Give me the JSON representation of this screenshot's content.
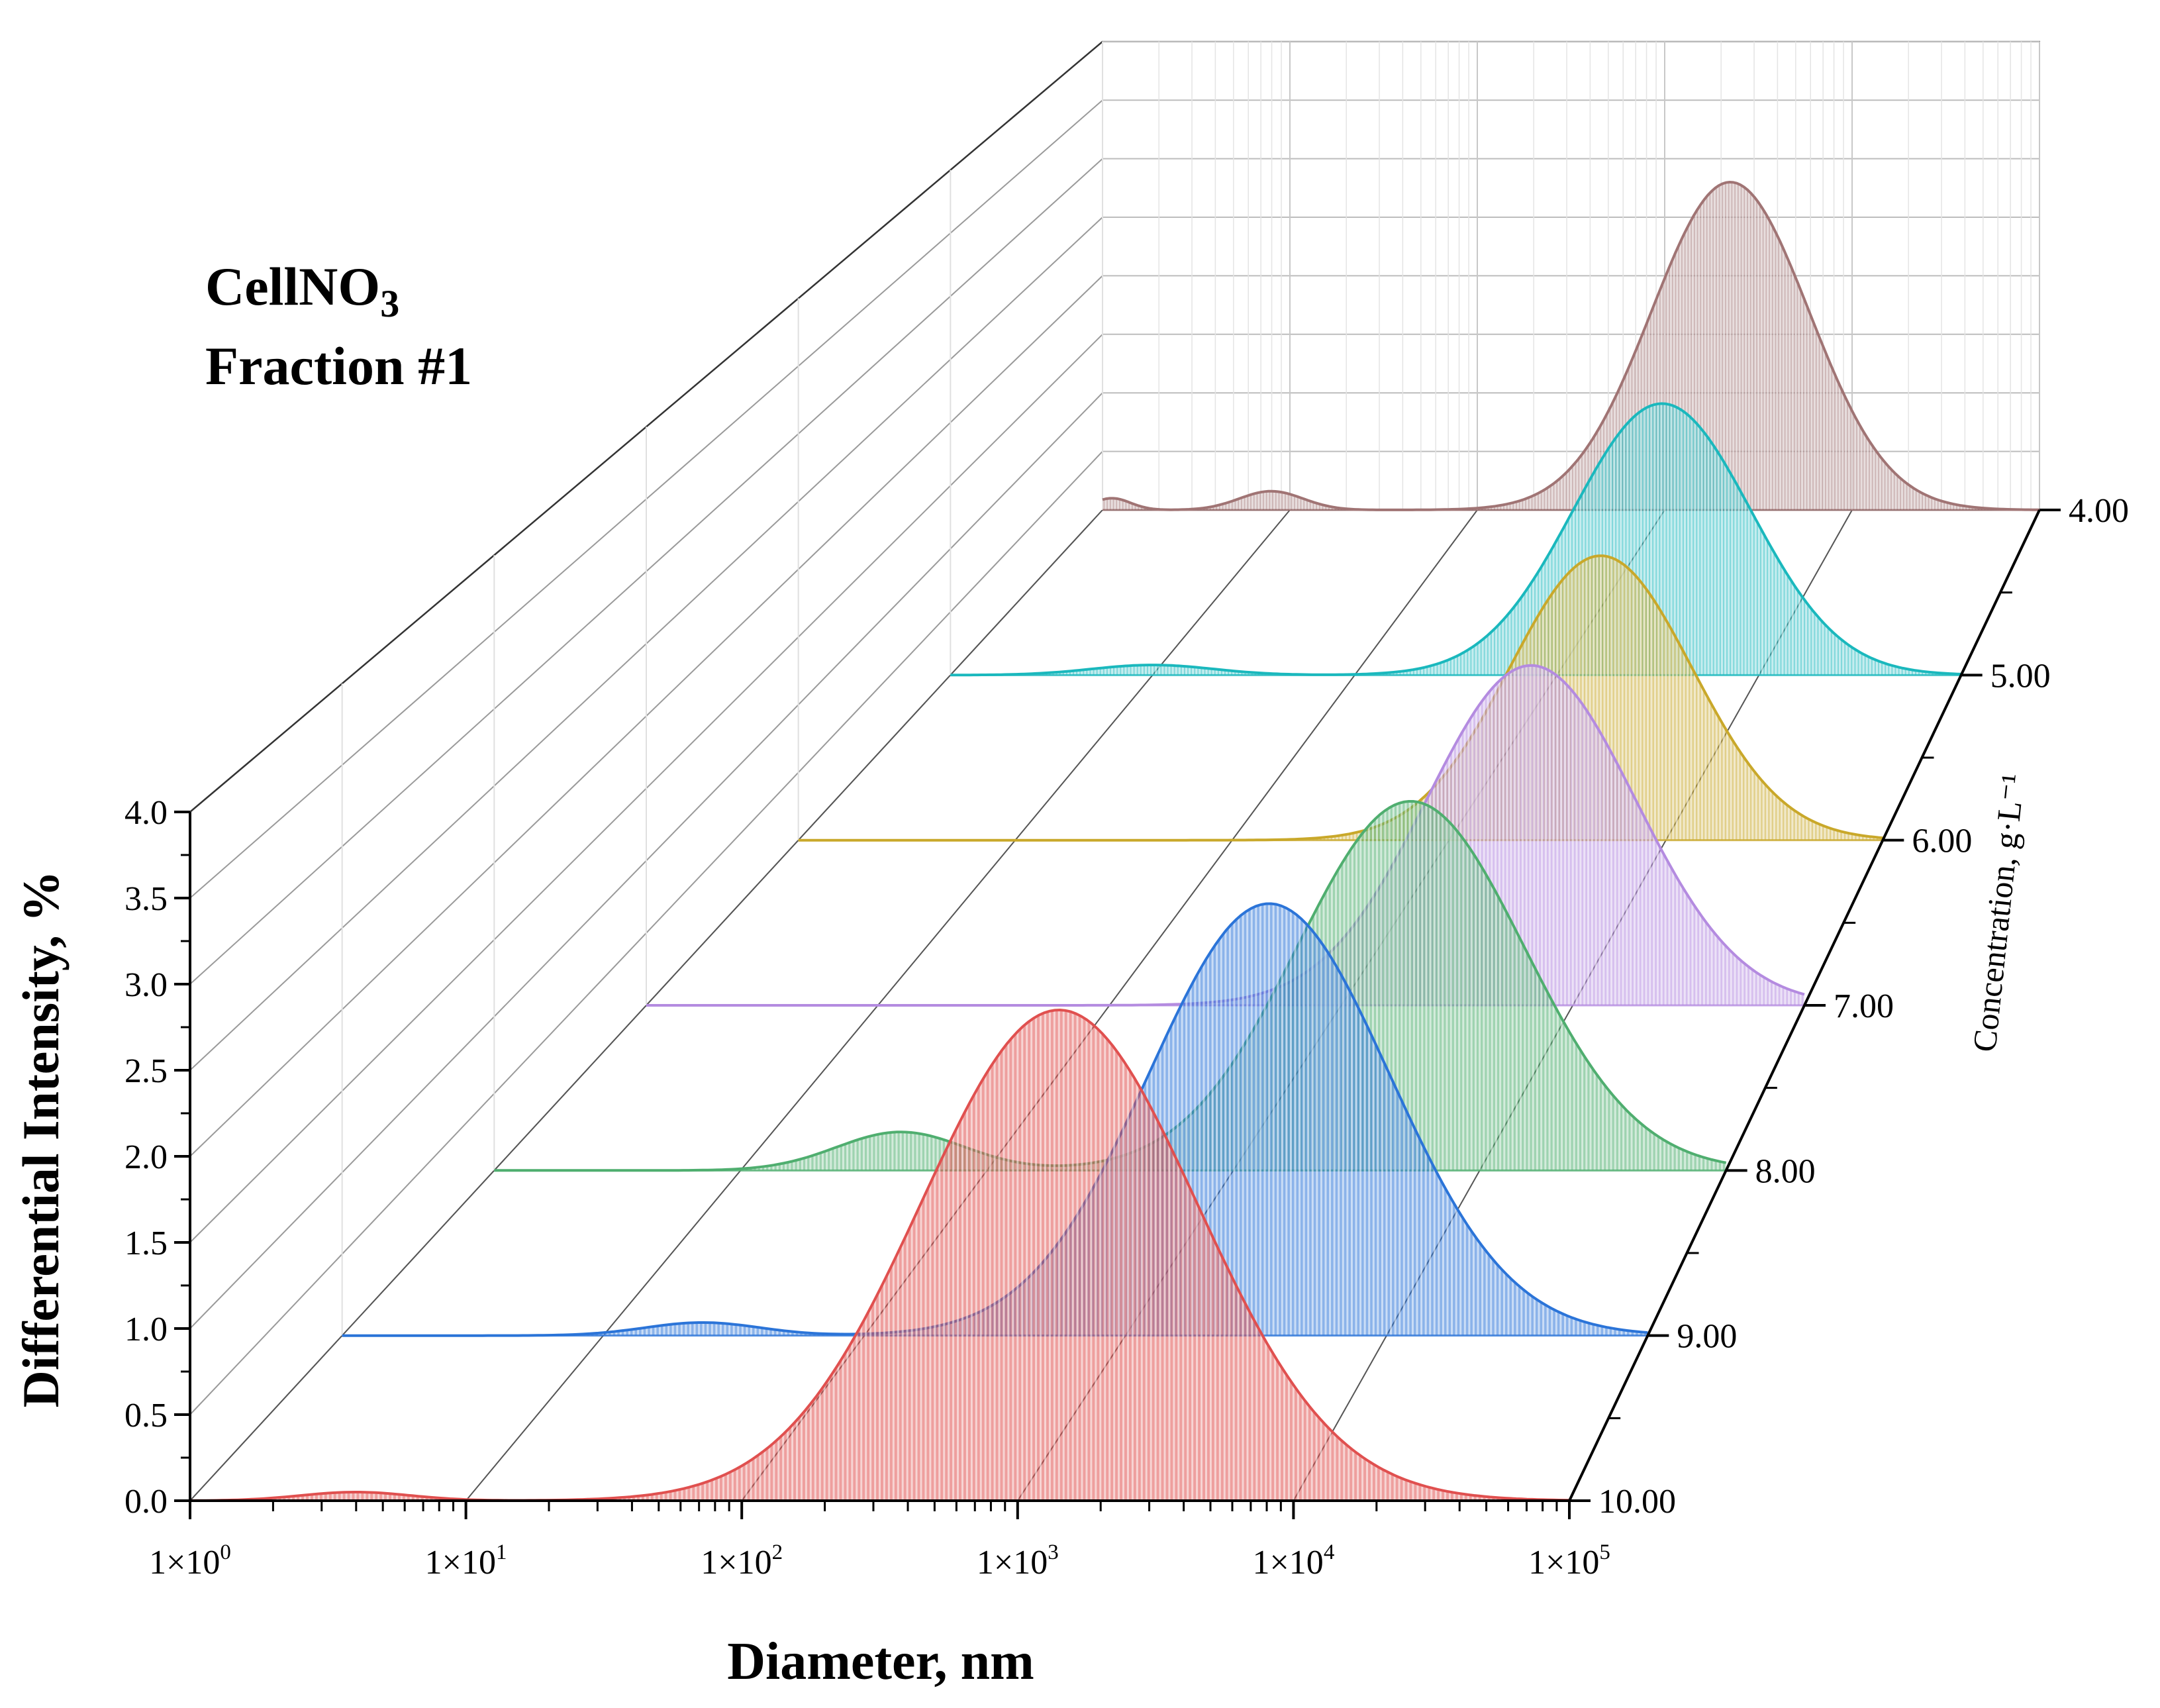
{
  "chart_data": {
    "type": "3d-waterfall",
    "annotation": {
      "line1": "CellNO",
      "line1_sub": "3",
      "line2": "Fraction #1"
    },
    "xlabel": "Diameter, nm",
    "ylabel": "Differential Intensity, %",
    "zlabel": "Concentration, g·L⁻¹",
    "x_scale": "log10",
    "xlim_log10": [
      0,
      5
    ],
    "x_ticks": [
      {
        "base": "1×10",
        "exp": "0"
      },
      {
        "base": "1×10",
        "exp": "1"
      },
      {
        "base": "1×10",
        "exp": "2"
      },
      {
        "base": "1×10",
        "exp": "3"
      },
      {
        "base": "1×10",
        "exp": "4"
      },
      {
        "base": "1×10",
        "exp": "5"
      }
    ],
    "ylim": [
      0,
      4
    ],
    "y_ticks": [
      "0.0",
      "0.5",
      "1.0",
      "1.5",
      "2.0",
      "2.5",
      "3.0",
      "3.5",
      "4.0"
    ],
    "z_ticks": [
      "4.00",
      "5.00",
      "6.00",
      "7.00",
      "8.00",
      "9.00",
      "10.00"
    ],
    "series": [
      {
        "concentration": 4.0,
        "color": "#a07474",
        "x_start_log10": 0.0,
        "x_end_log10": 5.0,
        "peaks": [
          {
            "center_log10": 0.05,
            "amp": 0.1,
            "sigma": 0.1
          },
          {
            "center_log10": 0.9,
            "amp": 0.16,
            "sigma": 0.17
          },
          {
            "center_log10": 3.35,
            "amp": 2.8,
            "sigma": 0.42
          }
        ]
      },
      {
        "concentration": 5.0,
        "color": "#1ab8bd",
        "x_start_log10": 0.0,
        "x_end_log10": 5.0,
        "peaks": [
          {
            "center_log10": 1.0,
            "amp": 0.08,
            "sigma": 0.3
          },
          {
            "center_log10": 3.52,
            "amp": 2.15,
            "sigma": 0.44
          }
        ]
      },
      {
        "concentration": 6.0,
        "color": "#c9a82a",
        "x_start_log10": 0.0,
        "x_end_log10": 5.0,
        "peaks": [
          {
            "center_log10": 3.7,
            "amp": 2.1,
            "sigma": 0.42
          }
        ]
      },
      {
        "concentration": 7.0,
        "color": "#b48be0",
        "x_start_log10": 0.0,
        "x_end_log10": 5.0,
        "peaks": [
          {
            "center_log10": 3.82,
            "amp": 2.35,
            "sigma": 0.45
          }
        ]
      },
      {
        "concentration": 8.0,
        "color": "#4fae6f",
        "x_start_log10": 0.0,
        "x_end_log10": 5.0,
        "peaks": [
          {
            "center_log10": 1.65,
            "amp": 0.25,
            "sigma": 0.26
          },
          {
            "center_log10": 3.72,
            "amp": 2.4,
            "sigma": 0.46
          }
        ]
      },
      {
        "concentration": 9.0,
        "color": "#2b74d8",
        "x_start_log10": 0.0,
        "x_end_log10": 5.0,
        "peaks": [
          {
            "center_log10": 1.38,
            "amp": 0.08,
            "sigma": 0.22
          },
          {
            "center_log10": 3.55,
            "amp": 2.65,
            "sigma": 0.46
          }
        ]
      },
      {
        "concentration": 10.0,
        "color": "#e0504f",
        "x_start_log10": 0.0,
        "x_end_log10": 5.0,
        "peaks": [
          {
            "center_log10": 0.6,
            "amp": 0.05,
            "sigma": 0.2
          },
          {
            "center_log10": 3.15,
            "amp": 2.85,
            "sigma": 0.5
          }
        ]
      }
    ]
  }
}
